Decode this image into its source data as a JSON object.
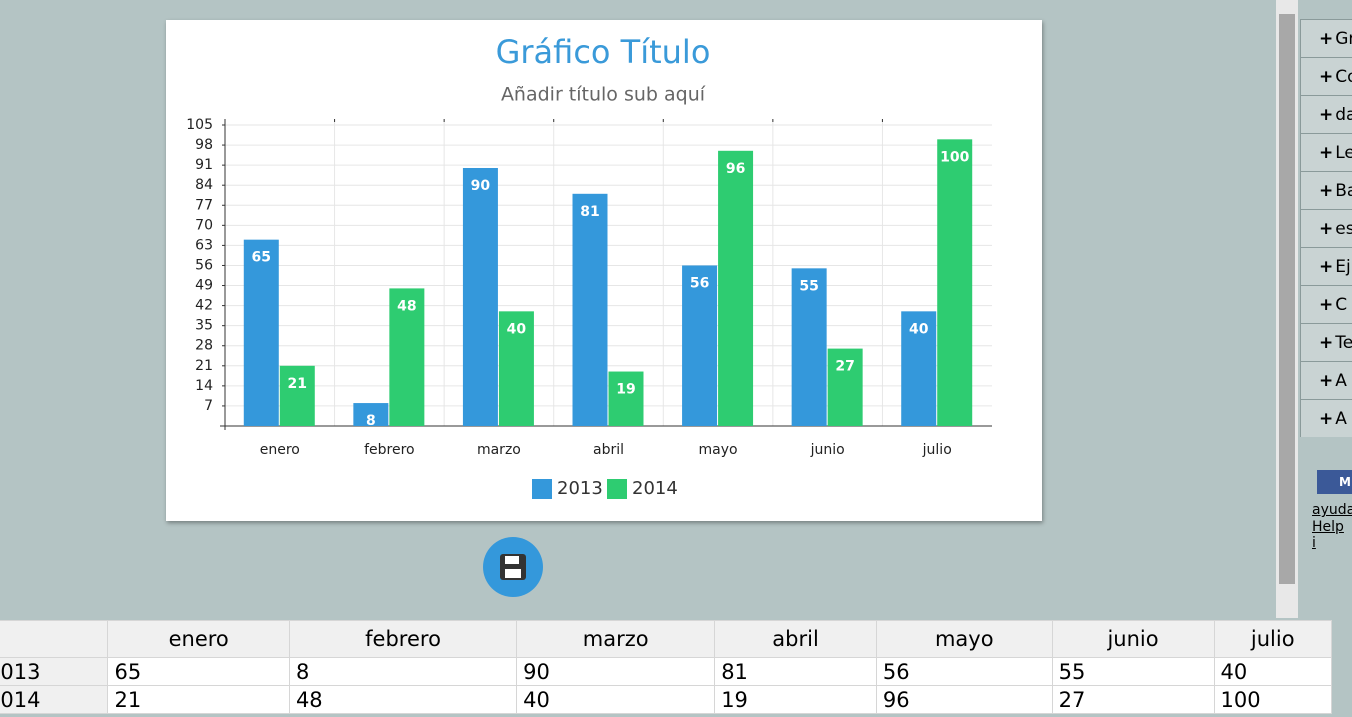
{
  "chart_data": {
    "type": "bar",
    "title": "Gráfico Título",
    "subtitle": "Añadir título sub aquí",
    "categories": [
      "enero",
      "febrero",
      "marzo",
      "abril",
      "mayo",
      "junio",
      "julio"
    ],
    "series": [
      {
        "name": "2013",
        "color": "#3498db",
        "values": [
          65,
          8,
          90,
          81,
          56,
          55,
          40
        ]
      },
      {
        "name": "2014",
        "color": "#2ecc71",
        "values": [
          21,
          48,
          40,
          19,
          96,
          27,
          100
        ]
      }
    ],
    "ylim": [
      0,
      105
    ],
    "yticks": [
      7,
      14,
      21,
      28,
      35,
      42,
      49,
      56,
      63,
      70,
      77,
      84,
      91,
      98,
      105
    ],
    "grid": true
  },
  "sidebar": {
    "items": [
      "Gr",
      "Co",
      "da",
      "Le",
      "Ba",
      "es",
      "Ej",
      "C",
      "Te",
      "A",
      "A"
    ],
    "facebook": "M",
    "links": [
      "ayuda",
      "Help i"
    ]
  }
}
